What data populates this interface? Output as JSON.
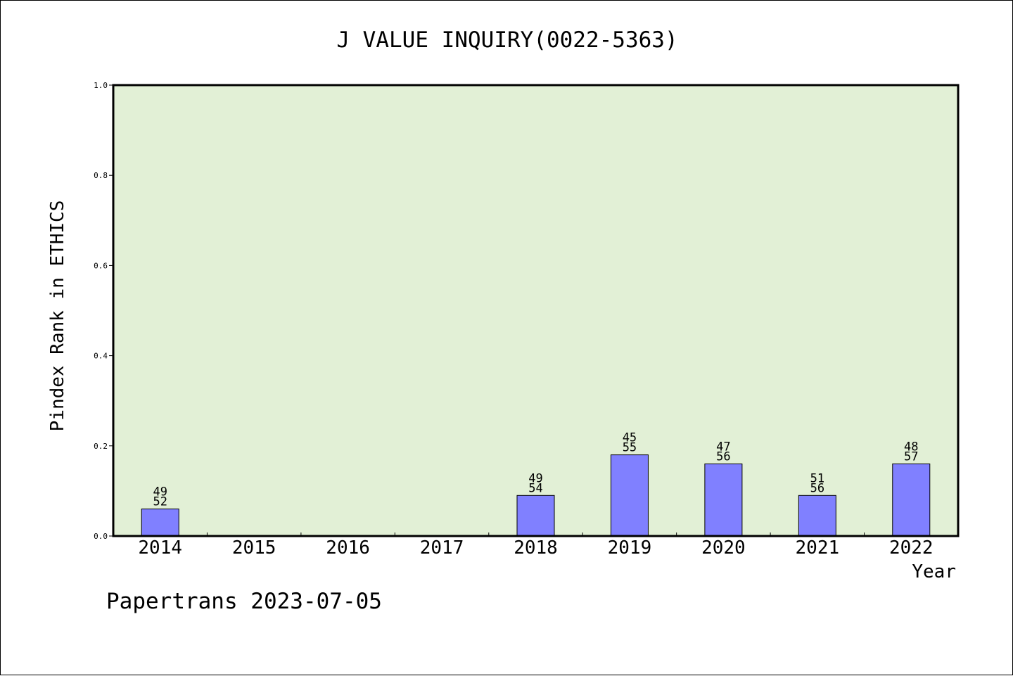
{
  "chart_data": {
    "type": "bar",
    "title": "J VALUE INQUIRY(0022-5363)",
    "xlabel": "Year",
    "ylabel": "Pindex Rank in ETHICS",
    "categories": [
      "2014",
      "2015",
      "2016",
      "2017",
      "2018",
      "2019",
      "2020",
      "2021",
      "2022"
    ],
    "values": [
      0.06,
      0,
      0,
      0,
      0.09,
      0.18,
      0.16,
      0.09,
      0.16
    ],
    "rank_labels": [
      {
        "rank": "49",
        "total": "52"
      },
      null,
      null,
      null,
      {
        "rank": "49",
        "total": "54"
      },
      {
        "rank": "45",
        "total": "55"
      },
      {
        "rank": "47",
        "total": "56"
      },
      {
        "rank": "51",
        "total": "56"
      },
      {
        "rank": "48",
        "total": "57"
      }
    ],
    "yticks": [
      "0.0",
      "0.2",
      "0.4",
      "0.6",
      "0.8",
      "1.0"
    ],
    "ylim": [
      0,
      1.0
    ],
    "grid": false,
    "plot_background": "#e2f0d6",
    "bar_color": "#8080ff"
  },
  "footer": {
    "text": "Papertrans 2023-07-05"
  }
}
